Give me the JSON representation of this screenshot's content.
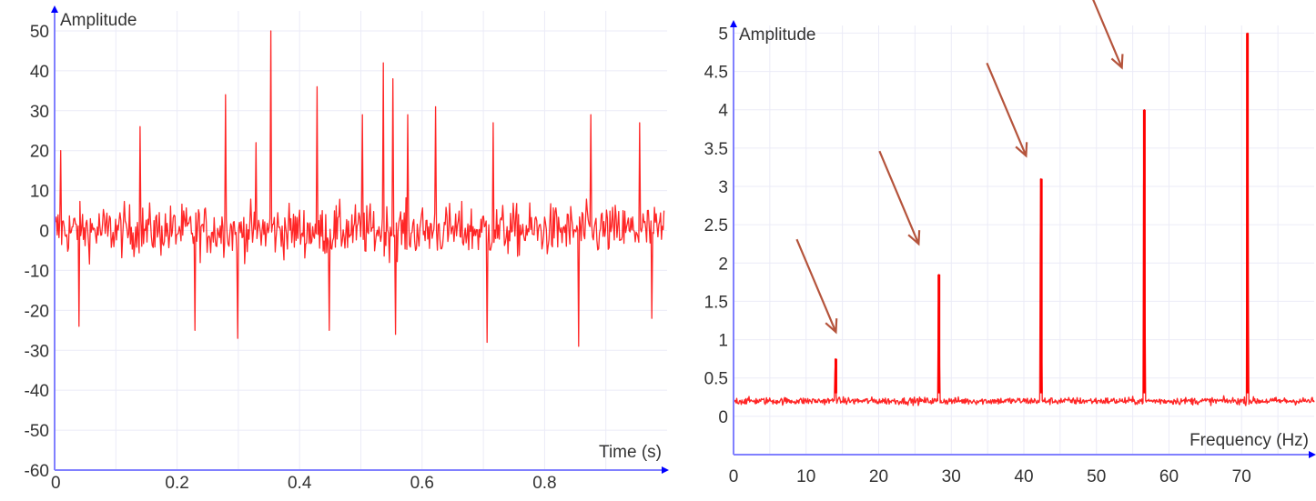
{
  "colors": {
    "signal": "#ff0000",
    "axis": "#8080ff",
    "grid": "#ebebf7",
    "arrow": "#b5543c",
    "text": "#333333"
  },
  "chart_data": [
    {
      "type": "line",
      "title": "",
      "xlabel": "Time (s)",
      "ylabel": "Amplitude",
      "xlim": [
        0,
        1
      ],
      "ylim": [
        -60,
        55
      ],
      "x_ticks": [
        0,
        0.2,
        0.4,
        0.6,
        0.8
      ],
      "x_tick_labels": [
        "0",
        "0.2",
        "0.4",
        "0.6",
        "0.8"
      ],
      "y_ticks": [
        50,
        40,
        30,
        20,
        10,
        0,
        -10,
        -20,
        -30,
        -40,
        -50,
        -60
      ],
      "y_tick_labels": [
        "50",
        "40",
        "30",
        "20",
        "10",
        "0",
        "-10",
        "-20",
        "-30",
        "-40",
        "-50",
        "-60"
      ],
      "grid": true,
      "series": [
        {
          "noise_range": [
            -20,
            20
          ],
          "notable_peaks": [
            {
              "x": 0.01,
              "y": 20
            },
            {
              "x": 0.14,
              "y": 26
            },
            {
              "x": 0.28,
              "y": 34
            },
            {
              "x": 0.33,
              "y": 22
            },
            {
              "x": 0.355,
              "y": 50
            },
            {
              "x": 0.43,
              "y": 36
            },
            {
              "x": 0.505,
              "y": 29
            },
            {
              "x": 0.54,
              "y": 42
            },
            {
              "x": 0.555,
              "y": 38
            },
            {
              "x": 0.58,
              "y": 29
            },
            {
              "x": 0.625,
              "y": 31
            },
            {
              "x": 0.72,
              "y": 27
            },
            {
              "x": 0.88,
              "y": 29
            },
            {
              "x": 0.96,
              "y": 27
            }
          ],
          "notable_troughs": [
            {
              "x": 0.04,
              "y": -24
            },
            {
              "x": 0.23,
              "y": -25
            },
            {
              "x": 0.3,
              "y": -27
            },
            {
              "x": 0.45,
              "y": -25
            },
            {
              "x": 0.56,
              "y": -26
            },
            {
              "x": 0.71,
              "y": -28
            },
            {
              "x": 0.86,
              "y": -29
            },
            {
              "x": 0.98,
              "y": -22
            }
          ]
        }
      ]
    },
    {
      "type": "line",
      "title": "",
      "xlabel": "Frequency (Hz)",
      "ylabel": "Amplitude",
      "xlim": [
        0,
        80
      ],
      "ylim": [
        -0.5,
        5.1
      ],
      "x_ticks": [
        0,
        10,
        20,
        30,
        40,
        50,
        60,
        70
      ],
      "x_tick_labels": [
        "0",
        "10",
        "20",
        "30",
        "40",
        "50",
        "60",
        "70"
      ],
      "y_ticks": [
        5,
        4.5,
        4,
        3.5,
        3,
        2.5,
        2,
        1.5,
        1,
        0.5,
        0
      ],
      "y_tick_labels": [
        "5",
        "4.5",
        "4",
        "3.5",
        "3",
        "2.5",
        "2",
        "1.5",
        "1",
        "0.5",
        "0"
      ],
      "grid": true,
      "series": [
        {
          "baseline_range": [
            0.1,
            0.35
          ],
          "peaks": [
            {
              "x": 14.1,
              "y": 0.75
            },
            {
              "x": 28.3,
              "y": 1.85
            },
            {
              "x": 42.4,
              "y": 3.1
            },
            {
              "x": 56.6,
              "y": 4.0
            },
            {
              "x": 70.8,
              "y": 5.0
            }
          ]
        }
      ],
      "annotations": [
        {
          "type": "arrow",
          "points_to": {
            "x": 14.1,
            "y": 1.1
          }
        },
        {
          "type": "arrow",
          "points_to": {
            "x": 25.5,
            "y": 2.25
          }
        },
        {
          "type": "arrow",
          "points_to": {
            "x": 40.3,
            "y": 3.4
          }
        },
        {
          "type": "arrow",
          "points_to": {
            "x": 53.5,
            "y": 4.55
          }
        }
      ]
    }
  ]
}
